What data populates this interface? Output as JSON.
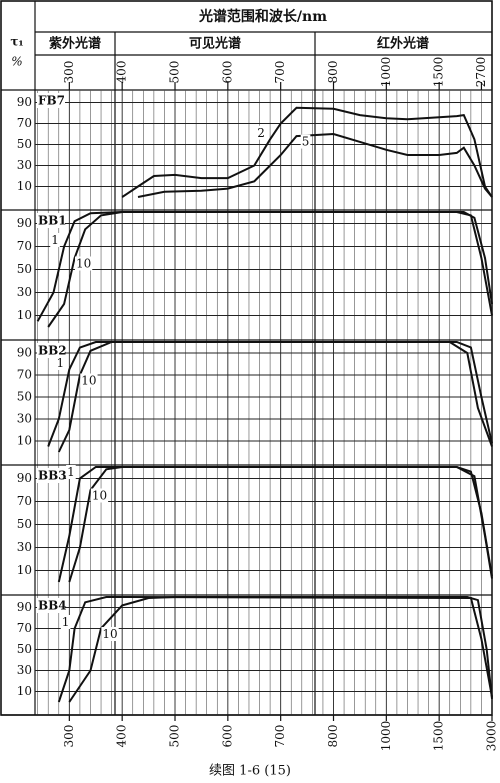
{
  "header": {
    "title": "光谱范围和波长/nm",
    "ylabel_symbol": "τ₁",
    "ylabel_unit": "%",
    "regions": [
      "紫外光谱",
      "可见光谱",
      "红外光谱"
    ],
    "top_ticks": [
      300,
      400,
      500,
      600,
      700,
      800,
      1000,
      1500,
      2700
    ]
  },
  "caption": "续图 1-6 (15)",
  "chart_data": [
    {
      "type": "line",
      "title": "FB7",
      "xlim": [
        235,
        3000
      ],
      "xticks": [
        300,
        400,
        500,
        600,
        700,
        800,
        1000,
        1500,
        3000
      ],
      "ylim": [
        0,
        100
      ],
      "yticks": [
        10,
        30,
        50,
        70,
        90
      ],
      "grid": true,
      "series": [
        {
          "name": "2",
          "color": "#111111",
          "x": [
            400,
            430,
            460,
            500,
            550,
            600,
            650,
            680,
            700,
            730,
            800,
            900,
            1000,
            1200,
            1500,
            2000,
            2200,
            2500,
            2800,
            3000
          ],
          "values": [
            0,
            10,
            20,
            21,
            18,
            18,
            30,
            55,
            70,
            85,
            84,
            78,
            75,
            74,
            76,
            77,
            78,
            55,
            10,
            0
          ]
        },
        {
          "name": "5",
          "color": "#111111",
          "x": [
            430,
            480,
            550,
            600,
            650,
            700,
            730,
            800,
            1000,
            1200,
            1500,
            2000,
            2200,
            2500,
            2800,
            3000
          ],
          "values": [
            0,
            5,
            6,
            8,
            15,
            40,
            58,
            60,
            45,
            40,
            40,
            42,
            47,
            30,
            8,
            0
          ]
        }
      ]
    },
    {
      "type": "line",
      "title": "BB1",
      "xlim": [
        235,
        3000
      ],
      "xticks": [
        300,
        400,
        500,
        600,
        700,
        800,
        1000,
        1500,
        3000
      ],
      "ylim": [
        0,
        100
      ],
      "yticks": [
        10,
        30,
        50,
        70,
        90
      ],
      "grid": true,
      "series": [
        {
          "name": "1",
          "color": "#111111",
          "x": [
            240,
            270,
            290,
            310,
            340,
            400,
            2200,
            2500,
            2800,
            3000
          ],
          "values": [
            5,
            30,
            70,
            92,
            99,
            100,
            100,
            95,
            60,
            20
          ]
        },
        {
          "name": "10",
          "color": "#111111",
          "x": [
            260,
            290,
            310,
            330,
            360,
            400,
            2000,
            2400,
            2700,
            3000
          ],
          "values": [
            0,
            20,
            60,
            85,
            97,
            100,
            100,
            97,
            60,
            10
          ]
        }
      ]
    },
    {
      "type": "line",
      "title": "BB2",
      "xlim": [
        235,
        3000
      ],
      "xticks": [
        300,
        400,
        500,
        600,
        700,
        800,
        1000,
        1500,
        3000
      ],
      "ylim": [
        0,
        100
      ],
      "yticks": [
        10,
        30,
        50,
        70,
        90
      ],
      "grid": true,
      "series": [
        {
          "name": "1",
          "color": "#111111",
          "x": [
            260,
            280,
            300,
            320,
            350,
            2000,
            2400,
            2700,
            3000
          ],
          "values": [
            5,
            30,
            75,
            95,
            100,
            100,
            95,
            50,
            8
          ]
        },
        {
          "name": "10",
          "color": "#111111",
          "x": [
            280,
            300,
            320,
            340,
            380,
            1800,
            2300,
            2600,
            3000
          ],
          "values": [
            0,
            20,
            70,
            92,
            100,
            100,
            90,
            40,
            5
          ]
        }
      ]
    },
    {
      "type": "line",
      "title": "BB3",
      "xlim": [
        235,
        3000
      ],
      "xticks": [
        300,
        400,
        500,
        600,
        700,
        800,
        1000,
        1500,
        3000
      ],
      "ylim": [
        0,
        100
      ],
      "yticks": [
        10,
        30,
        50,
        70,
        90
      ],
      "grid": true,
      "series": [
        {
          "name": "1",
          "color": "#111111",
          "x": [
            280,
            300,
            320,
            350,
            2000,
            2400,
            2700,
            3000
          ],
          "values": [
            0,
            40,
            90,
            100,
            100,
            96,
            60,
            5
          ]
        },
        {
          "name": "10",
          "color": "#111111",
          "x": [
            300,
            320,
            340,
            370,
            400,
            2000,
            2500,
            2800,
            3000
          ],
          "values": [
            0,
            30,
            80,
            98,
            100,
            100,
            92,
            40,
            3
          ]
        }
      ]
    },
    {
      "type": "line",
      "title": "BB4",
      "xlim": [
        235,
        3000
      ],
      "xticks": [
        300,
        400,
        500,
        600,
        700,
        800,
        1000,
        1500,
        3000
      ],
      "ylim": [
        0,
        100
      ],
      "yticks": [
        10,
        30,
        50,
        70,
        90
      ],
      "grid": true,
      "series": [
        {
          "name": "1",
          "color": "#111111",
          "x": [
            280,
            300,
            310,
            330,
            370,
            2400,
            2700,
            3000
          ],
          "values": [
            0,
            30,
            70,
            95,
            100,
            99,
            60,
            5
          ]
        },
        {
          "name": "10",
          "color": "#111111",
          "x": [
            300,
            340,
            360,
            400,
            450,
            500,
            2300,
            2600,
            2850,
            3000
          ],
          "values": [
            0,
            30,
            70,
            92,
            99,
            100,
            100,
            97,
            50,
            3
          ]
        }
      ]
    }
  ]
}
